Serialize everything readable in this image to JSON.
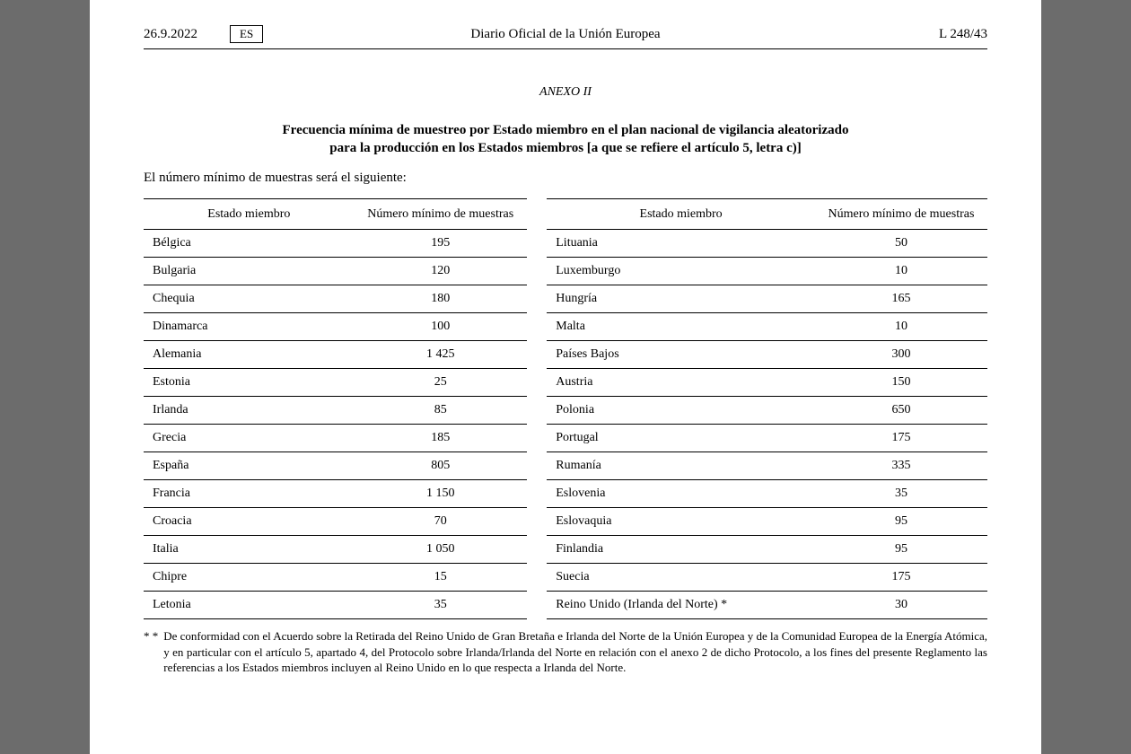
{
  "header": {
    "date": "26.9.2022",
    "language": "ES",
    "journal": "Diario Oficial de la Unión Europea",
    "page_ref": "L 248/43"
  },
  "annex_label": "ANEXO II",
  "title_line1": "Frecuencia mínima de muestreo por Estado miembro en el plan nacional de vigilancia aleatorizado",
  "title_line2": "para la producción en los Estados miembros [a que se refiere el artículo 5, letra c)]",
  "intro": "El número mínimo de muestras será el siguiente:",
  "table": {
    "columns": {
      "state": "Estado miembro",
      "samples": "Número mínimo de muestras"
    },
    "rows": [
      {
        "a_state": "Bélgica",
        "a_val": "195",
        "b_state": "Lituania",
        "b_val": "50"
      },
      {
        "a_state": "Bulgaria",
        "a_val": "120",
        "b_state": "Luxemburgo",
        "b_val": "10"
      },
      {
        "a_state": "Chequia",
        "a_val": "180",
        "b_state": "Hungría",
        "b_val": "165"
      },
      {
        "a_state": "Dinamarca",
        "a_val": "100",
        "b_state": "Malta",
        "b_val": "10"
      },
      {
        "a_state": "Alemania",
        "a_val": "1 425",
        "b_state": "Países Bajos",
        "b_val": "300"
      },
      {
        "a_state": "Estonia",
        "a_val": "25",
        "b_state": "Austria",
        "b_val": "150"
      },
      {
        "a_state": "Irlanda",
        "a_val": "85",
        "b_state": "Polonia",
        "b_val": "650"
      },
      {
        "a_state": "Grecia",
        "a_val": "185",
        "b_state": "Portugal",
        "b_val": "175"
      },
      {
        "a_state": "España",
        "a_val": "805",
        "b_state": "Rumanía",
        "b_val": "335"
      },
      {
        "a_state": "Francia",
        "a_val": "1 150",
        "b_state": "Eslovenia",
        "b_val": "35"
      },
      {
        "a_state": "Croacia",
        "a_val": "70",
        "b_state": "Eslovaquia",
        "b_val": "95"
      },
      {
        "a_state": "Italia",
        "a_val": "1 050",
        "b_state": "Finlandia",
        "b_val": "95"
      },
      {
        "a_state": "Chipre",
        "a_val": "15",
        "b_state": "Suecia",
        "b_val": "175"
      },
      {
        "a_state": "Letonia",
        "a_val": "35",
        "b_state": "Reino Unido (Irlanda del Norte) *",
        "b_val": "30"
      }
    ]
  },
  "footnote": {
    "marker": "* *",
    "text": "De conformidad con el Acuerdo sobre la Retirada del Reino Unido de Gran Bretaña e Irlanda del Norte de la Unión Europea y de la Comunidad Europea de la Energía Atómica, y en particular con el artículo 5, apartado 4, del Protocolo sobre Irlanda/Irlanda del Norte en relación con el anexo 2 de dicho Protocolo, a los fines del presente Reglamento las referencias a los Estados miembros incluyen al Reino Unido en lo que respecta a Irlanda del Norte."
  }
}
